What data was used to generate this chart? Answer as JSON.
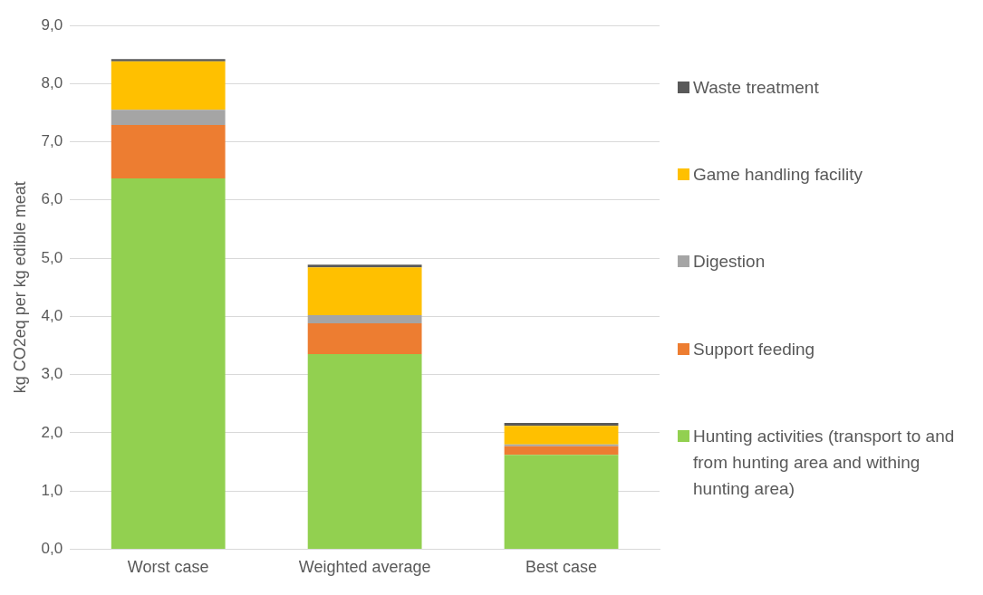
{
  "chart_data": {
    "type": "bar",
    "stacked": true,
    "ylabel": "kg CO2eq per kg edible meat",
    "categories": [
      "Worst case",
      "Weighted average",
      "Best case"
    ],
    "series": [
      {
        "name": "Hunting activities (transport to and from hunting area and withing hunting area)",
        "color": "#92d050",
        "values": [
          6.37,
          3.35,
          1.62
        ]
      },
      {
        "name": "Support feeding",
        "color": "#ed7d31",
        "values": [
          0.92,
          0.53,
          0.15
        ]
      },
      {
        "name": "Digestion",
        "color": "#a5a5a5",
        "values": [
          0.26,
          0.14,
          0.03
        ]
      },
      {
        "name": "Game handling facility",
        "color": "#ffc000",
        "values": [
          0.83,
          0.82,
          0.32
        ]
      },
      {
        "name": "Waste treatment",
        "color": "#595959",
        "values": [
          0.04,
          0.05,
          0.05
        ]
      }
    ],
    "ylim": [
      0,
      9
    ],
    "yticks": [
      {
        "value": 0,
        "label": "0,0"
      },
      {
        "value": 1,
        "label": "1,0"
      },
      {
        "value": 2,
        "label": "2,0"
      },
      {
        "value": 3,
        "label": "3,0"
      },
      {
        "value": 4,
        "label": "4,0"
      },
      {
        "value": 5,
        "label": "5,0"
      },
      {
        "value": 6,
        "label": "6,0"
      },
      {
        "value": 7,
        "label": "7,0"
      },
      {
        "value": 8,
        "label": "8,0"
      },
      {
        "value": 9,
        "label": "9,0"
      }
    ],
    "grid": "y",
    "legend": "right"
  }
}
